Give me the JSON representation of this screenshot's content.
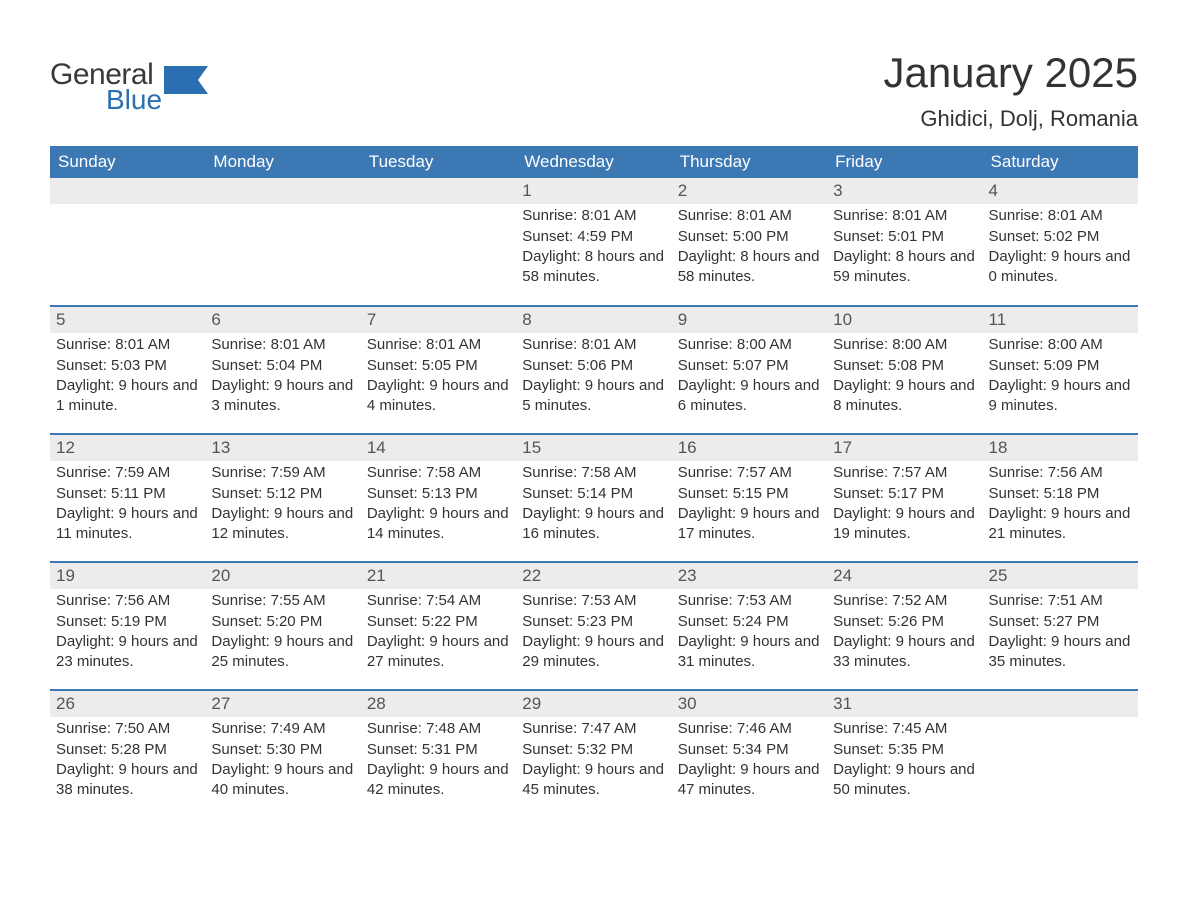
{
  "brand": {
    "word1": "General",
    "word2": "Blue",
    "word1_color": "#3a3a3a",
    "word2_color": "#2b6fb3",
    "flag_color": "#2b6fb3"
  },
  "title": "January 2025",
  "location": "Ghidici, Dolj, Romania",
  "colors": {
    "header_bg": "#3c78b4",
    "header_text": "#ffffff",
    "row_border": "#3c78b4",
    "daynum_bg": "#ececec",
    "daynum_text": "#555555",
    "body_text": "#333333",
    "page_bg": "#ffffff"
  },
  "typography": {
    "title_fontsize": 42,
    "location_fontsize": 22,
    "header_fontsize": 17,
    "daynum_fontsize": 17,
    "body_fontsize": 15
  },
  "calendar": {
    "type": "table",
    "columns": [
      "Sunday",
      "Monday",
      "Tuesday",
      "Wednesday",
      "Thursday",
      "Friday",
      "Saturday"
    ],
    "weeks": [
      [
        null,
        null,
        null,
        {
          "n": "1",
          "sunrise": "Sunrise: 8:01 AM",
          "sunset": "Sunset: 4:59 PM",
          "daylight": "Daylight: 8 hours and 58 minutes."
        },
        {
          "n": "2",
          "sunrise": "Sunrise: 8:01 AM",
          "sunset": "Sunset: 5:00 PM",
          "daylight": "Daylight: 8 hours and 58 minutes."
        },
        {
          "n": "3",
          "sunrise": "Sunrise: 8:01 AM",
          "sunset": "Sunset: 5:01 PM",
          "daylight": "Daylight: 8 hours and 59 minutes."
        },
        {
          "n": "4",
          "sunrise": "Sunrise: 8:01 AM",
          "sunset": "Sunset: 5:02 PM",
          "daylight": "Daylight: 9 hours and 0 minutes."
        }
      ],
      [
        {
          "n": "5",
          "sunrise": "Sunrise: 8:01 AM",
          "sunset": "Sunset: 5:03 PM",
          "daylight": "Daylight: 9 hours and 1 minute."
        },
        {
          "n": "6",
          "sunrise": "Sunrise: 8:01 AM",
          "sunset": "Sunset: 5:04 PM",
          "daylight": "Daylight: 9 hours and 3 minutes."
        },
        {
          "n": "7",
          "sunrise": "Sunrise: 8:01 AM",
          "sunset": "Sunset: 5:05 PM",
          "daylight": "Daylight: 9 hours and 4 minutes."
        },
        {
          "n": "8",
          "sunrise": "Sunrise: 8:01 AM",
          "sunset": "Sunset: 5:06 PM",
          "daylight": "Daylight: 9 hours and 5 minutes."
        },
        {
          "n": "9",
          "sunrise": "Sunrise: 8:00 AM",
          "sunset": "Sunset: 5:07 PM",
          "daylight": "Daylight: 9 hours and 6 minutes."
        },
        {
          "n": "10",
          "sunrise": "Sunrise: 8:00 AM",
          "sunset": "Sunset: 5:08 PM",
          "daylight": "Daylight: 9 hours and 8 minutes."
        },
        {
          "n": "11",
          "sunrise": "Sunrise: 8:00 AM",
          "sunset": "Sunset: 5:09 PM",
          "daylight": "Daylight: 9 hours and 9 minutes."
        }
      ],
      [
        {
          "n": "12",
          "sunrise": "Sunrise: 7:59 AM",
          "sunset": "Sunset: 5:11 PM",
          "daylight": "Daylight: 9 hours and 11 minutes."
        },
        {
          "n": "13",
          "sunrise": "Sunrise: 7:59 AM",
          "sunset": "Sunset: 5:12 PM",
          "daylight": "Daylight: 9 hours and 12 minutes."
        },
        {
          "n": "14",
          "sunrise": "Sunrise: 7:58 AM",
          "sunset": "Sunset: 5:13 PM",
          "daylight": "Daylight: 9 hours and 14 minutes."
        },
        {
          "n": "15",
          "sunrise": "Sunrise: 7:58 AM",
          "sunset": "Sunset: 5:14 PM",
          "daylight": "Daylight: 9 hours and 16 minutes."
        },
        {
          "n": "16",
          "sunrise": "Sunrise: 7:57 AM",
          "sunset": "Sunset: 5:15 PM",
          "daylight": "Daylight: 9 hours and 17 minutes."
        },
        {
          "n": "17",
          "sunrise": "Sunrise: 7:57 AM",
          "sunset": "Sunset: 5:17 PM",
          "daylight": "Daylight: 9 hours and 19 minutes."
        },
        {
          "n": "18",
          "sunrise": "Sunrise: 7:56 AM",
          "sunset": "Sunset: 5:18 PM",
          "daylight": "Daylight: 9 hours and 21 minutes."
        }
      ],
      [
        {
          "n": "19",
          "sunrise": "Sunrise: 7:56 AM",
          "sunset": "Sunset: 5:19 PM",
          "daylight": "Daylight: 9 hours and 23 minutes."
        },
        {
          "n": "20",
          "sunrise": "Sunrise: 7:55 AM",
          "sunset": "Sunset: 5:20 PM",
          "daylight": "Daylight: 9 hours and 25 minutes."
        },
        {
          "n": "21",
          "sunrise": "Sunrise: 7:54 AM",
          "sunset": "Sunset: 5:22 PM",
          "daylight": "Daylight: 9 hours and 27 minutes."
        },
        {
          "n": "22",
          "sunrise": "Sunrise: 7:53 AM",
          "sunset": "Sunset: 5:23 PM",
          "daylight": "Daylight: 9 hours and 29 minutes."
        },
        {
          "n": "23",
          "sunrise": "Sunrise: 7:53 AM",
          "sunset": "Sunset: 5:24 PM",
          "daylight": "Daylight: 9 hours and 31 minutes."
        },
        {
          "n": "24",
          "sunrise": "Sunrise: 7:52 AM",
          "sunset": "Sunset: 5:26 PM",
          "daylight": "Daylight: 9 hours and 33 minutes."
        },
        {
          "n": "25",
          "sunrise": "Sunrise: 7:51 AM",
          "sunset": "Sunset: 5:27 PM",
          "daylight": "Daylight: 9 hours and 35 minutes."
        }
      ],
      [
        {
          "n": "26",
          "sunrise": "Sunrise: 7:50 AM",
          "sunset": "Sunset: 5:28 PM",
          "daylight": "Daylight: 9 hours and 38 minutes."
        },
        {
          "n": "27",
          "sunrise": "Sunrise: 7:49 AM",
          "sunset": "Sunset: 5:30 PM",
          "daylight": "Daylight: 9 hours and 40 minutes."
        },
        {
          "n": "28",
          "sunrise": "Sunrise: 7:48 AM",
          "sunset": "Sunset: 5:31 PM",
          "daylight": "Daylight: 9 hours and 42 minutes."
        },
        {
          "n": "29",
          "sunrise": "Sunrise: 7:47 AM",
          "sunset": "Sunset: 5:32 PM",
          "daylight": "Daylight: 9 hours and 45 minutes."
        },
        {
          "n": "30",
          "sunrise": "Sunrise: 7:46 AM",
          "sunset": "Sunset: 5:34 PM",
          "daylight": "Daylight: 9 hours and 47 minutes."
        },
        {
          "n": "31",
          "sunrise": "Sunrise: 7:45 AM",
          "sunset": "Sunset: 5:35 PM",
          "daylight": "Daylight: 9 hours and 50 minutes."
        },
        null
      ]
    ]
  }
}
